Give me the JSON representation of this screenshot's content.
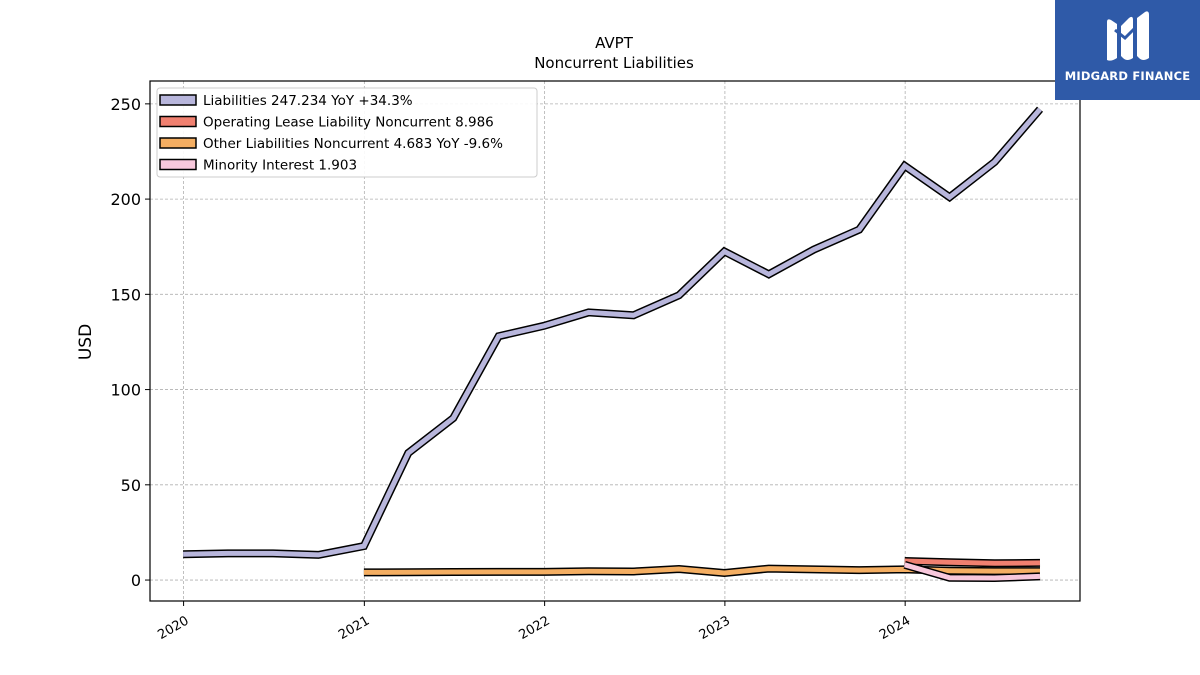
{
  "brand": {
    "name": "MIDGARD FINANCE",
    "bg_color": "#2f5aa8",
    "icon": "stylized-m-logo-icon"
  },
  "chart_data": {
    "type": "line",
    "title": "AVPT",
    "subtitle": "Noncurrent  Liabilities",
    "xlabel": "",
    "ylabel": "USD",
    "xlim": [
      "2019-10-25",
      "2024-12-20"
    ],
    "ylim": [
      -11,
      262
    ],
    "x_ticks": [
      "2020",
      "2021",
      "2022",
      "2023",
      "2024"
    ],
    "y_ticks": [
      0,
      50,
      100,
      150,
      200,
      250
    ],
    "grid": true,
    "legend_position": "top-left",
    "series": [
      {
        "name": "Liabilities",
        "legend_label": "Liabilities  247.234 YoY +34.3%",
        "color": "#b8b6dc",
        "x": [
          "2019-12-31",
          "2020-03-31",
          "2020-06-30",
          "2020-09-30",
          "2020-12-31",
          "2021-03-31",
          "2021-06-30",
          "2021-09-30",
          "2021-12-31",
          "2022-03-31",
          "2022-06-30",
          "2022-09-30",
          "2022-12-31",
          "2023-03-31",
          "2023-06-30",
          "2023-09-30",
          "2023-12-31",
          "2024-03-31",
          "2024-06-30",
          "2024-09-30"
        ],
        "values": [
          13.5,
          14.0,
          14.0,
          13.2,
          17.8,
          66.7,
          85.0,
          128.0,
          133.5,
          140.5,
          139.0,
          149.5,
          172.5,
          160.5,
          173.5,
          184.0,
          217.5,
          201.0,
          219.5,
          247.2
        ]
      },
      {
        "name": "Operating Lease Liability Noncurrent",
        "legend_label": "Operating Lease Liability Noncurrent  8.986",
        "color": "#f08070",
        "x": [
          "2023-12-31",
          "2024-03-31",
          "2024-06-30",
          "2024-09-30"
        ],
        "values": [
          10.0,
          9.3,
          8.8,
          9.0
        ]
      },
      {
        "name": "Other Liabilities Noncurrent",
        "legend_label": "Other Liabilities Noncurrent  4.683 YoY -9.6%",
        "color": "#f4ae62",
        "x": [
          "2020-12-31",
          "2021-03-31",
          "2021-06-30",
          "2021-09-30",
          "2021-12-31",
          "2022-03-31",
          "2022-06-30",
          "2022-09-30",
          "2022-12-31",
          "2023-03-31",
          "2023-06-30",
          "2023-09-30",
          "2023-12-31",
          "2024-03-31",
          "2024-06-30",
          "2024-09-30"
        ],
        "values": [
          4.0,
          4.1,
          4.2,
          4.3,
          4.3,
          4.6,
          4.5,
          5.8,
          3.7,
          6.0,
          5.6,
          5.2,
          5.6,
          4.9,
          4.7,
          4.7
        ]
      },
      {
        "name": "Minority Interest",
        "legend_label": "Minority Interest  1.903",
        "color": "#f8c8dc",
        "x": [
          "2023-12-31",
          "2024-03-31",
          "2024-06-30",
          "2024-09-30"
        ],
        "values": [
          8.0,
          1.2,
          1.1,
          1.9
        ]
      }
    ]
  }
}
